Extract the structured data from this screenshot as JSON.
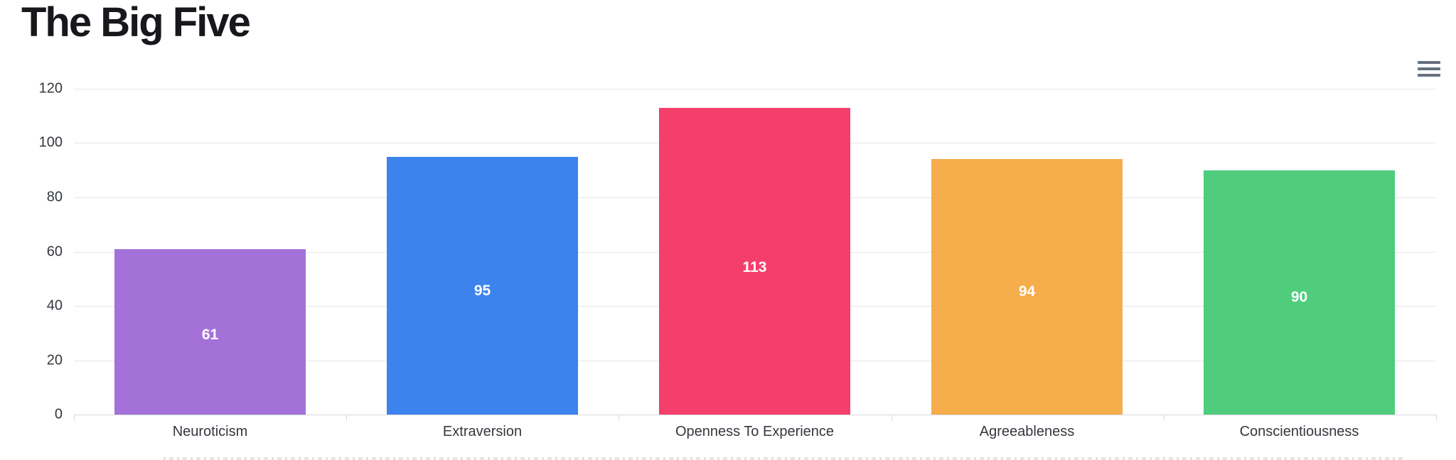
{
  "header": {
    "title": "The Big Five"
  },
  "toolbar": {
    "context_menu": {
      "icon": "hamburger-icon",
      "icon_color": "#66707e"
    }
  },
  "colors": {
    "background": "#ffffff",
    "title": "#16181c",
    "grid_line": "#e7e7e7",
    "axis_line": "#d6d9dd",
    "axis_label": "#33373d",
    "data_label": "#ffffff"
  },
  "chart_data": {
    "type": "bar",
    "title": "The Big Five",
    "categories": [
      "Neuroticism",
      "Extraversion",
      "Openness To Experience",
      "Agreeableness",
      "Conscientiousness"
    ],
    "values": [
      61,
      95,
      113,
      94,
      90
    ],
    "bar_colors": [
      "#a471d9",
      "#3d83ed",
      "#f43f6d",
      "#f6ad4c",
      "#4fcd7c"
    ],
    "show_data_labels": true,
    "xlabel": "",
    "ylabel": "",
    "ylim": [
      0,
      120
    ],
    "yticks": [
      0,
      20,
      40,
      60,
      80,
      100,
      120
    ],
    "grid": true,
    "legend": "none",
    "bar_width_fraction": 0.7
  }
}
